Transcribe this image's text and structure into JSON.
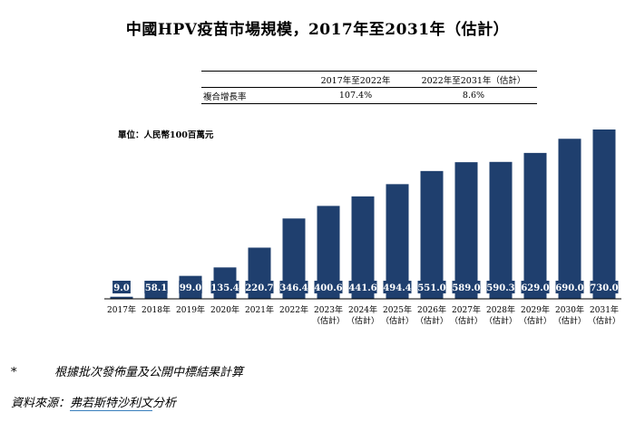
{
  "title": "中國HPV疫苗市場規模，2017年至2031年（估計）",
  "cagr_table": {
    "headers": [
      "",
      "2017年至2022年",
      "2022年至2031年（估計）"
    ],
    "row_label": "複合增長率",
    "values": [
      "107.4%",
      "8.6%"
    ]
  },
  "unit": "單位：人民幣100百萬元",
  "chart_data": {
    "type": "bar",
    "title": "中國HPV疫苗市場規模，2017年至2031年（估計）",
    "ylabel": "單位：人民幣100百萬元",
    "xlabel": "",
    "ylim": [
      0,
      730
    ],
    "categories": [
      [
        "2017年",
        ""
      ],
      [
        "2018年",
        ""
      ],
      [
        "2019年",
        ""
      ],
      [
        "2020年",
        ""
      ],
      [
        "2021年",
        ""
      ],
      [
        "2022年",
        ""
      ],
      [
        "2023年",
        "（估計）"
      ],
      [
        "2024年",
        "（估計）"
      ],
      [
        "2025年",
        "（估計）"
      ],
      [
        "2026年",
        "（估計）"
      ],
      [
        "2027年",
        "（估計）"
      ],
      [
        "2028年",
        "（估計）"
      ],
      [
        "2029年",
        "（估計）"
      ],
      [
        "2030年",
        "（估計）"
      ],
      [
        "2031年",
        "（估計）"
      ]
    ],
    "values": [
      9.0,
      58.1,
      99.0,
      135.4,
      220.7,
      346.4,
      400.6,
      441.6,
      494.4,
      551.0,
      589.0,
      590.3,
      629.0,
      690.0,
      730.0
    ],
    "value_labels": [
      "9.0",
      "58.1",
      "99.0",
      "135.4",
      "220.7",
      "346.4",
      "400.6",
      "441.6",
      "494.4",
      "551.0",
      "589.0",
      "590.3",
      "629.0",
      "690.0",
      "730.0"
    ],
    "bar_color": "#1f3f6e",
    "label_color": "#ffffff"
  },
  "footnote": {
    "marker": "*",
    "text": "根據批次發佈量及公開中標結果計算"
  },
  "source": {
    "prefix": "資料來源：",
    "highlight": "弗若斯特沙利文",
    "suffix": "分析"
  }
}
